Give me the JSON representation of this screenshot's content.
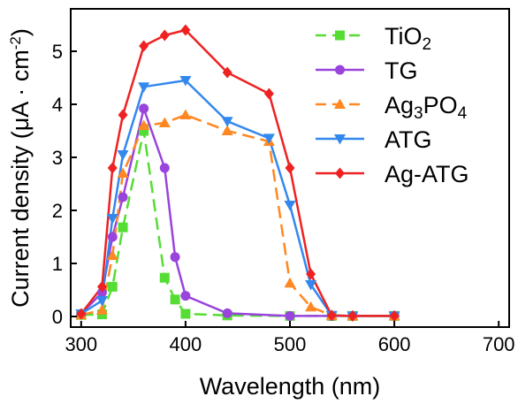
{
  "chart_data": {
    "type": "line",
    "xlabel": "Wavelength (nm)",
    "ylabel_parts": {
      "main": "Current density (μA · cm",
      "sup": "-2",
      "end": ")"
    },
    "xlim": [
      290,
      710
    ],
    "ylim": [
      -0.2,
      5.8
    ],
    "xticks": [
      300,
      400,
      500,
      600,
      700
    ],
    "yticks": [
      0,
      1,
      2,
      3,
      4,
      5
    ],
    "legend_position": "top-right",
    "series": [
      {
        "name_parts": [
          {
            "t": "TiO"
          },
          {
            "t": "2",
            "sub": true
          }
        ],
        "color": "#55dd33",
        "marker": "square",
        "dash": "14,7",
        "x": [
          300,
          320,
          330,
          340,
          360,
          380,
          390,
          400,
          440,
          500,
          540,
          560,
          600
        ],
        "y": [
          0.03,
          0.04,
          0.56,
          1.68,
          3.5,
          0.73,
          0.32,
          0.05,
          0.02,
          0.01,
          0.01,
          0.01,
          0.01
        ]
      },
      {
        "name_parts": [
          {
            "t": "TG"
          }
        ],
        "color": "#9944dd",
        "marker": "circle",
        "dash": "",
        "x": [
          300,
          320,
          330,
          340,
          360,
          380,
          390,
          400,
          440,
          500,
          540,
          560,
          600
        ],
        "y": [
          0.05,
          0.45,
          1.5,
          2.25,
          3.92,
          2.8,
          1.12,
          0.39,
          0.06,
          0.01,
          0.01,
          0.01,
          0.01
        ]
      },
      {
        "name_parts": [
          {
            "t": "Ag"
          },
          {
            "t": "3",
            "sub": true
          },
          {
            "t": "PO"
          },
          {
            "t": "4",
            "sub": true
          }
        ],
        "color": "#ff8822",
        "marker": "triangle-up",
        "dash": "14,7",
        "x": [
          300,
          320,
          330,
          340,
          360,
          380,
          400,
          440,
          480,
          500,
          520,
          540,
          560,
          600
        ],
        "y": [
          0.03,
          0.12,
          1.15,
          2.7,
          3.6,
          3.65,
          3.8,
          3.5,
          3.3,
          0.63,
          0.18,
          0.02,
          0.01,
          0.01
        ]
      },
      {
        "name_parts": [
          {
            "t": "ATG"
          }
        ],
        "color": "#3388ee",
        "marker": "triangle-down",
        "dash": "",
        "x": [
          300,
          320,
          330,
          340,
          360,
          400,
          440,
          480,
          500,
          520,
          540,
          560,
          600
        ],
        "y": [
          0.05,
          0.3,
          1.85,
          3.05,
          4.33,
          4.45,
          3.68,
          3.36,
          2.1,
          0.6,
          0.02,
          0.01,
          0.01
        ]
      },
      {
        "name_parts": [
          {
            "t": "Ag-ATG"
          }
        ],
        "color": "#ee2222",
        "marker": "diamond",
        "dash": "",
        "x": [
          300,
          320,
          330,
          340,
          360,
          380,
          400,
          440,
          480,
          500,
          520,
          540,
          560,
          600
        ],
        "y": [
          0.05,
          0.56,
          2.8,
          3.8,
          5.1,
          5.3,
          5.4,
          4.6,
          4.2,
          2.8,
          0.8,
          0.02,
          0.01,
          0.01
        ]
      }
    ]
  }
}
